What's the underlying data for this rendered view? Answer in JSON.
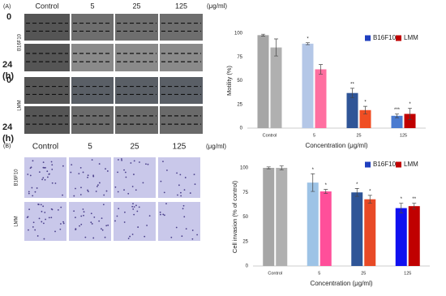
{
  "panel_a": {
    "label": "(A)",
    "columns": [
      "Control",
      "5",
      "25",
      "125"
    ],
    "unit": "(μg/ml)",
    "groups": [
      {
        "name": "B16F10",
        "times": [
          "0",
          "24"
        ],
        "time_unit": "(h)"
      },
      {
        "name": "LMM",
        "times": [
          "0",
          "24"
        ],
        "time_unit": "(h)"
      }
    ]
  },
  "panel_b": {
    "label": "(B)",
    "columns": [
      "Control",
      "5",
      "25",
      "125"
    ],
    "unit": "(μg/ml)",
    "groups": [
      "B16F10",
      "LMM"
    ]
  },
  "chart_data": [
    {
      "type": "bar",
      "x_label": "Concentration (μg/ml)",
      "y_label": "Motility (%)",
      "categories": [
        "Control",
        "5",
        "25",
        "125"
      ],
      "ylim": [
        0,
        100
      ],
      "yticks": [
        0,
        25,
        50,
        75,
        100
      ],
      "legend": "top-right",
      "series": [
        {
          "name": "B16F10",
          "color": "#1f3fbf",
          "colors": [
            "#a6a6a6",
            "#b4c7e7",
            "#2f5597",
            "#4a7bd0"
          ],
          "values": [
            98,
            89,
            37,
            13
          ],
          "errors": [
            1,
            1,
            5,
            2
          ],
          "annotations": [
            null,
            "*",
            "**",
            "***"
          ]
        },
        {
          "name": "LMM",
          "color": "#c00000",
          "colors": [
            "#b0b0b0",
            "#ff6fa0",
            "#f04e23",
            "#c00000"
          ],
          "values": [
            85,
            62,
            19,
            15
          ],
          "errors": [
            9,
            5,
            4,
            6
          ],
          "annotations": [
            null,
            null,
            "*",
            "*"
          ]
        }
      ]
    },
    {
      "type": "bar",
      "x_label": "Concentration (μg/ml)",
      "y_label": "Cell invasion (% of control)",
      "categories": [
        "Control",
        "5",
        "25",
        "125"
      ],
      "ylim": [
        0,
        100
      ],
      "yticks": [
        0,
        25,
        50,
        75,
        100
      ],
      "legend": "top-right",
      "series": [
        {
          "name": "B16F10",
          "color": "#1f3fbf",
          "colors": [
            "#a6a6a6",
            "#9dc3e6",
            "#2f5597",
            "#1010f0"
          ],
          "values": [
            100,
            85,
            75,
            59
          ],
          "errors": [
            1,
            9,
            4,
            5
          ],
          "annotations": [
            null,
            "*",
            "*",
            "*"
          ]
        },
        {
          "name": "LMM",
          "color": "#c00000",
          "colors": [
            "#b0b0b0",
            "#ff4f9a",
            "#e84a27",
            "#c00000"
          ],
          "values": [
            100,
            76,
            68,
            61
          ],
          "errors": [
            2,
            2,
            4,
            3
          ],
          "annotations": [
            null,
            "*",
            "*",
            "**"
          ]
        }
      ]
    }
  ]
}
